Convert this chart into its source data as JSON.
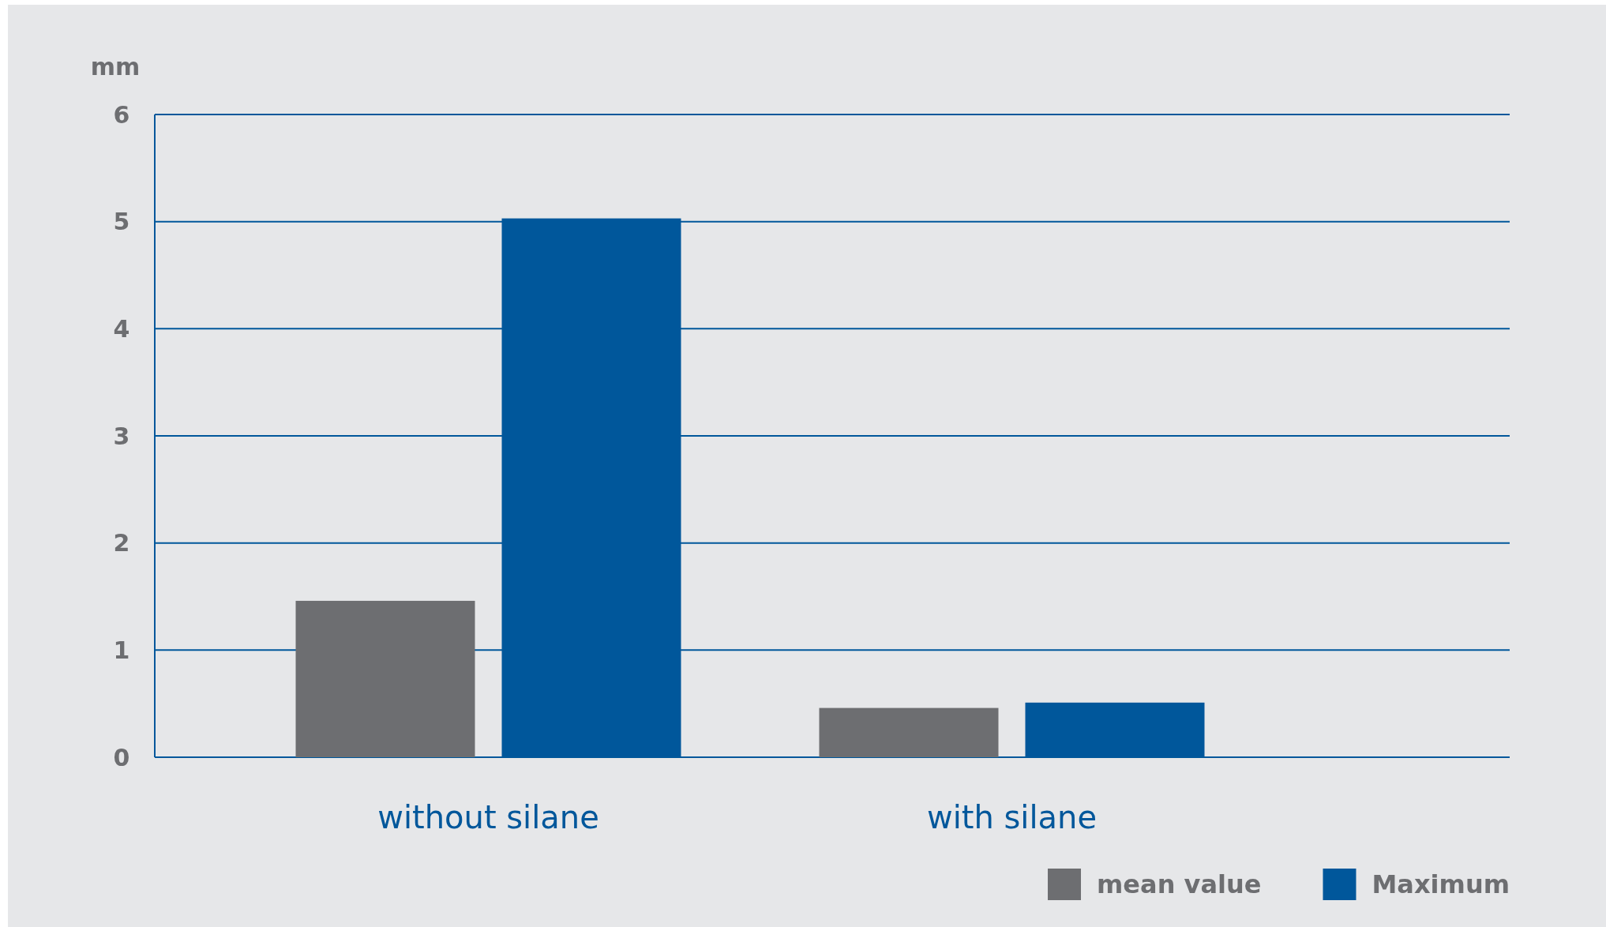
{
  "chart_data": {
    "type": "bar",
    "ylabel": "mm",
    "categories": [
      "without silane",
      "with silane"
    ],
    "series": [
      {
        "name": "mean value",
        "color": "#6d6e71",
        "values": [
          1.46,
          0.46
        ]
      },
      {
        "name": "Maximum",
        "color": "#00579b",
        "values": [
          5.03,
          0.51
        ]
      }
    ],
    "ylim": [
      0,
      6
    ],
    "yticks": [
      0,
      1,
      2,
      3,
      4,
      5,
      6
    ],
    "grid": "y",
    "legend": "bottom right"
  }
}
